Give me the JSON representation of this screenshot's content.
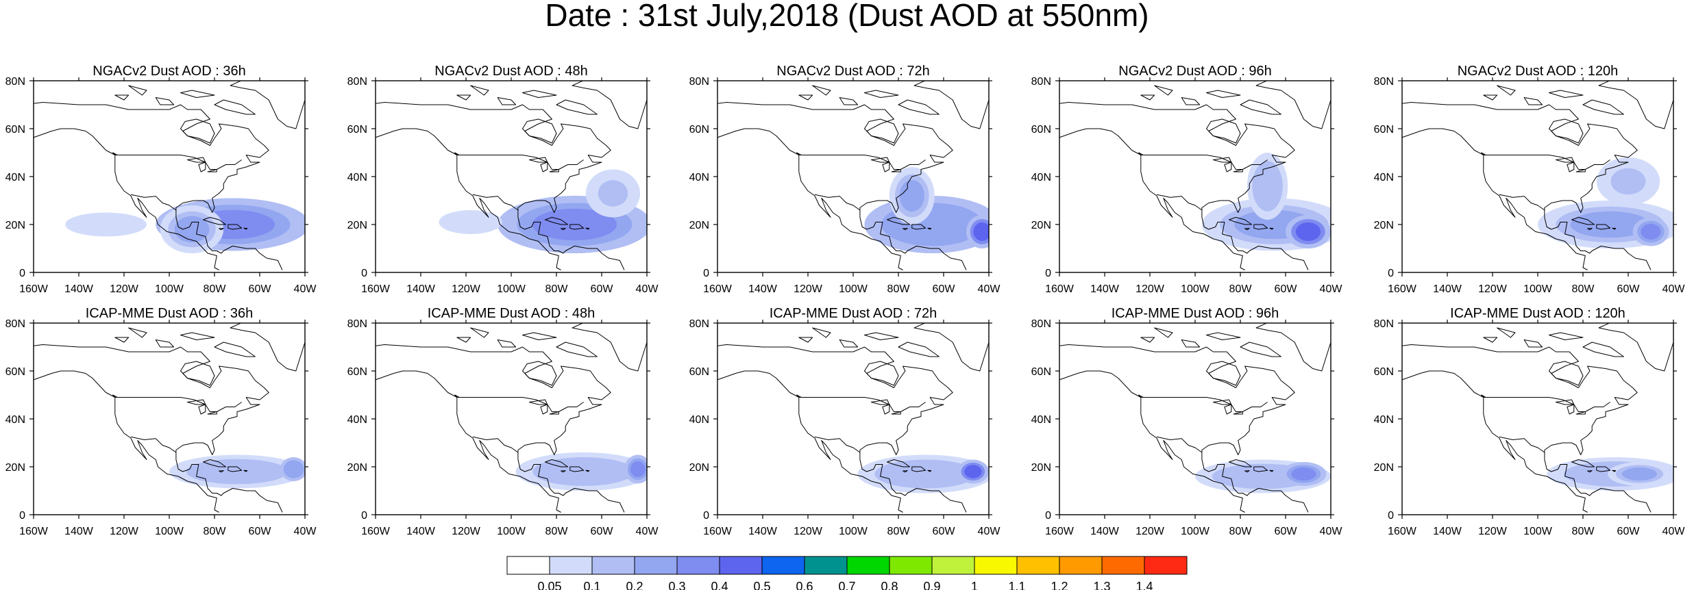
{
  "figure": {
    "title": "Date : 31st July,2018 (Dust AOD at 550nm)",
    "x_ticks": [
      "160W",
      "140W",
      "120W",
      "100W",
      "80W",
      "60W",
      "40W"
    ],
    "y_ticks": [
      "0",
      "20N",
      "40N",
      "60N",
      "80N"
    ],
    "panels": [
      {
        "title": "NGACv2 Dust AOD : 36h",
        "model": "NGACv2",
        "lead_hours": 36,
        "plumes": [
          {
            "lon": -72,
            "lat": 20,
            "rlon": 34,
            "rlat": 11,
            "aod": 0.45
          },
          {
            "lon": -128,
            "lat": 20,
            "rlon": 18,
            "rlat": 5,
            "aod": 0.12
          },
          {
            "lon": -90,
            "lat": 18,
            "rlon": 14,
            "rlat": 10,
            "aod": 0.3
          }
        ]
      },
      {
        "title": "NGACv2 Dust AOD : 48h",
        "model": "NGACv2",
        "lead_hours": 48,
        "plumes": [
          {
            "lon": -72,
            "lat": 20,
            "rlon": 34,
            "rlat": 12,
            "aod": 0.45
          },
          {
            "lon": -118,
            "lat": 21,
            "rlon": 14,
            "rlat": 5,
            "aod": 0.12
          },
          {
            "lon": -55,
            "lat": 33,
            "rlon": 12,
            "rlat": 10,
            "aod": 0.15
          }
        ]
      },
      {
        "title": "NGACv2 Dust AOD : 72h",
        "model": "NGACv2",
        "lead_hours": 72,
        "plumes": [
          {
            "lon": -65,
            "lat": 20,
            "rlon": 30,
            "rlat": 12,
            "aod": 0.4
          },
          {
            "lon": -43,
            "lat": 17,
            "rlon": 7,
            "rlat": 7,
            "aod": 0.7
          },
          {
            "lon": -74,
            "lat": 32,
            "rlon": 10,
            "rlat": 12,
            "aod": 0.3
          }
        ]
      },
      {
        "title": "NGACv2 Dust AOD : 96h",
        "model": "NGACv2",
        "lead_hours": 96,
        "plumes": [
          {
            "lon": -65,
            "lat": 20,
            "rlon": 32,
            "rlat": 11,
            "aod": 0.35
          },
          {
            "lon": -50,
            "lat": 17,
            "rlon": 10,
            "rlat": 7,
            "aod": 0.6
          },
          {
            "lon": -68,
            "lat": 36,
            "rlon": 9,
            "rlat": 14,
            "aod": 0.2
          }
        ]
      },
      {
        "title": "NGACv2 Dust AOD : 120h",
        "model": "NGACv2",
        "lead_hours": 120,
        "plumes": [
          {
            "lon": -68,
            "lat": 20,
            "rlon": 32,
            "rlat": 10,
            "aod": 0.3
          },
          {
            "lon": -50,
            "lat": 17,
            "rlon": 8,
            "rlat": 6,
            "aod": 0.5
          },
          {
            "lon": -60,
            "lat": 38,
            "rlon": 14,
            "rlat": 10,
            "aod": 0.15
          }
        ]
      },
      {
        "title": "ICAP-MME Dust AOD : 36h",
        "model": "ICAP-MME",
        "lead_hours": 36,
        "plumes": [
          {
            "lon": -70,
            "lat": 18,
            "rlon": 30,
            "rlat": 7,
            "aod": 0.25
          },
          {
            "lon": -45,
            "lat": 19,
            "rlon": 6,
            "rlat": 5,
            "aod": 0.4
          }
        ]
      },
      {
        "title": "ICAP-MME Dust AOD : 48h",
        "model": "ICAP-MME",
        "lead_hours": 48,
        "plumes": [
          {
            "lon": -68,
            "lat": 18,
            "rlon": 30,
            "rlat": 8,
            "aod": 0.25
          },
          {
            "lon": -44,
            "lat": 19,
            "rlon": 6,
            "rlat": 6,
            "aod": 0.5
          }
        ]
      },
      {
        "title": "ICAP-MME Dust AOD : 72h",
        "model": "ICAP-MME",
        "lead_hours": 72,
        "plumes": [
          {
            "lon": -68,
            "lat": 17,
            "rlon": 30,
            "rlat": 8,
            "aod": 0.25
          },
          {
            "lon": -47,
            "lat": 18,
            "rlon": 7,
            "rlat": 5,
            "aod": 0.6
          }
        ]
      },
      {
        "title": "ICAP-MME Dust AOD : 96h",
        "model": "ICAP-MME",
        "lead_hours": 96,
        "plumes": [
          {
            "lon": -70,
            "lat": 16,
            "rlon": 30,
            "rlat": 7,
            "aod": 0.25
          },
          {
            "lon": -52,
            "lat": 17,
            "rlon": 10,
            "rlat": 5,
            "aod": 0.45
          }
        ]
      },
      {
        "title": "ICAP-MME Dust AOD : 120h",
        "model": "ICAP-MME",
        "lead_hours": 120,
        "plumes": [
          {
            "lon": -66,
            "lat": 17,
            "rlon": 30,
            "rlat": 7,
            "aod": 0.25
          },
          {
            "lon": -55,
            "lat": 17,
            "rlon": 14,
            "rlat": 5,
            "aod": 0.35
          }
        ]
      }
    ]
  },
  "colorbar": {
    "levels": [
      "0.05",
      "0.1",
      "0.2",
      "0.3",
      "0.4",
      "0.5",
      "0.6",
      "0.7",
      "0.8",
      "0.9",
      "1",
      "1.1",
      "1.2",
      "1.3",
      "1.4"
    ],
    "colors": [
      "#ffffff",
      "#d2dcfa",
      "#b0bef4",
      "#93a6f0",
      "#7f8cf0",
      "#5d64ee",
      "#0d65f0",
      "#00928f",
      "#00d600",
      "#7fe800",
      "#c0f23c",
      "#f8f800",
      "#ffc000",
      "#ff9a00",
      "#ff6a00",
      "#ff2a14"
    ]
  }
}
